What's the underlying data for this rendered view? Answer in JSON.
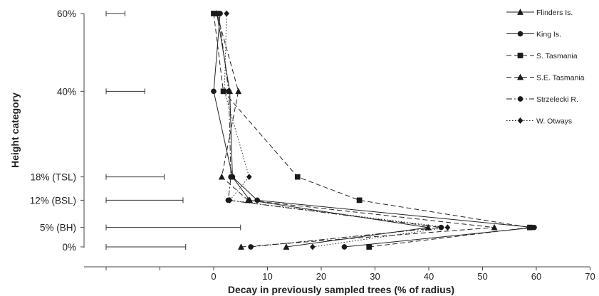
{
  "chart_data": {
    "type": "line",
    "xlabel": "Decay in previously sampled trees (% of radius)",
    "ylabel": "Height category",
    "xlim": [
      -20,
      70
    ],
    "x_ticks": [
      0,
      10,
      20,
      30,
      40,
      50,
      60,
      70
    ],
    "categories": [
      "0%",
      "5% (BH)",
      "12% (BSL)",
      "18% (TSL)",
      "40%",
      "60%"
    ],
    "category_heights": [
      0,
      5,
      12,
      18,
      40,
      60
    ],
    "legend_position": "top-right",
    "grid": false,
    "series": [
      {
        "name": "Flinders Is.",
        "marker": "triangle",
        "dash": "solid",
        "values": [
          13.5,
          39.9,
          6.7,
          3.5,
          3.0,
          0.6
        ]
      },
      {
        "name": "King Is.",
        "marker": "circle",
        "dash": "solid",
        "values": [
          24.3,
          59.6,
          8.1,
          3.5,
          0.0,
          1.2
        ]
      },
      {
        "name": "S. Tasmania",
        "marker": "square",
        "dash": "longdash",
        "values": [
          28.9,
          58.8,
          27.1,
          15.6,
          1.8,
          0.0
        ]
      },
      {
        "name": "S.E. Tasmania",
        "marker": "triangle",
        "dash": "longdash",
        "values": [
          5.1,
          52.2,
          6.4,
          1.5,
          4.6,
          0.6
        ]
      },
      {
        "name": "Strzelecki R.",
        "marker": "circle",
        "dash": "dashdot",
        "values": [
          6.9,
          42.3,
          2.7,
          3.2,
          2.8,
          0.9
        ]
      },
      {
        "name": "W. Otways",
        "marker": "diamond",
        "dash": "dotted",
        "values": [
          18.4,
          43.5,
          3.0,
          6.6,
          2.0,
          2.4
        ]
      }
    ],
    "error_bars": [
      {
        "category": "0%",
        "from": -20,
        "to": -5.2
      },
      {
        "category": "5% (BH)",
        "from": -20,
        "to": 5.0
      },
      {
        "category": "12% (BSL)",
        "from": -20,
        "to": -5.7
      },
      {
        "category": "18% (TSL)",
        "from": -20,
        "to": -9.2
      },
      {
        "category": "40%",
        "from": -20,
        "to": -12.8
      },
      {
        "category": "60%",
        "from": -20,
        "to": -16.5
      }
    ]
  }
}
